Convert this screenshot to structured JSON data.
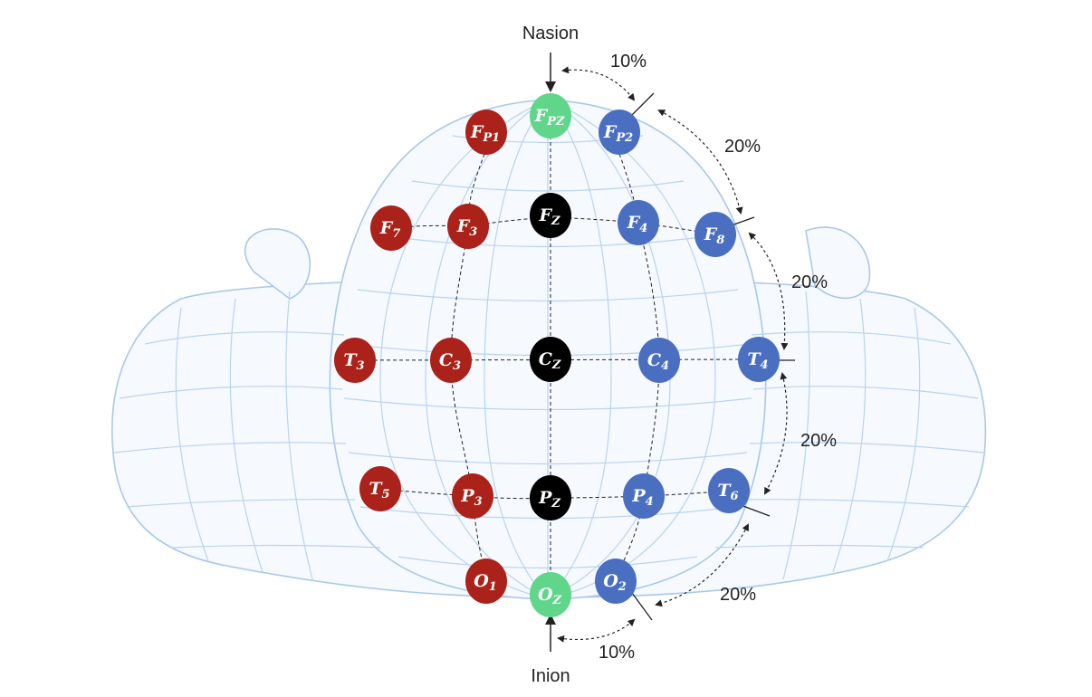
{
  "landmarks": {
    "top": "Nasion",
    "bottom": "Inion"
  },
  "percentages": {
    "nasion_fp2": "10%",
    "fp2_f8": "20%",
    "f8_t4": "20%",
    "t4_t6": "20%",
    "t6_o2": "20%",
    "oz_inion": "10%"
  },
  "colors": {
    "left_hemisphere": "#aa2219",
    "right_hemisphere": "#4a6fc1",
    "midline_black": "#000000",
    "midline_green": "#5fd68a"
  },
  "electrodes": [
    {
      "id": "fpz",
      "symbol": "F",
      "sub": "PZ",
      "color": "#5fd68a"
    },
    {
      "id": "fp1",
      "symbol": "F",
      "sub": "P1",
      "color": "#aa2219"
    },
    {
      "id": "fp2",
      "symbol": "F",
      "sub": "P2",
      "color": "#4a6fc1"
    },
    {
      "id": "f7",
      "symbol": "F",
      "sub": "7",
      "color": "#aa2219"
    },
    {
      "id": "f3",
      "symbol": "F",
      "sub": "3",
      "color": "#aa2219"
    },
    {
      "id": "fz",
      "symbol": "F",
      "sub": "Z",
      "color": "#000000"
    },
    {
      "id": "f4",
      "symbol": "F",
      "sub": "4",
      "color": "#4a6fc1"
    },
    {
      "id": "f8",
      "symbol": "F",
      "sub": "8",
      "color": "#4a6fc1"
    },
    {
      "id": "t3",
      "symbol": "T",
      "sub": "3",
      "color": "#aa2219"
    },
    {
      "id": "c3",
      "symbol": "C",
      "sub": "3",
      "color": "#aa2219"
    },
    {
      "id": "cz",
      "symbol": "C",
      "sub": "Z",
      "color": "#000000"
    },
    {
      "id": "c4",
      "symbol": "C",
      "sub": "4",
      "color": "#4a6fc1"
    },
    {
      "id": "t4",
      "symbol": "T",
      "sub": "4",
      "color": "#4a6fc1"
    },
    {
      "id": "t5",
      "symbol": "T",
      "sub": "5",
      "color": "#aa2219"
    },
    {
      "id": "p3",
      "symbol": "P",
      "sub": "3",
      "color": "#aa2219"
    },
    {
      "id": "pz",
      "symbol": "P",
      "sub": "Z",
      "color": "#000000"
    },
    {
      "id": "p4",
      "symbol": "P",
      "sub": "4",
      "color": "#4a6fc1"
    },
    {
      "id": "t6",
      "symbol": "T",
      "sub": "6",
      "color": "#4a6fc1"
    },
    {
      "id": "o1",
      "symbol": "O",
      "sub": "1",
      "color": "#aa2219"
    },
    {
      "id": "oz",
      "symbol": "O",
      "sub": "Z",
      "color": "#5fd68a"
    },
    {
      "id": "o2",
      "symbol": "O",
      "sub": "2",
      "color": "#4a6fc1"
    }
  ]
}
